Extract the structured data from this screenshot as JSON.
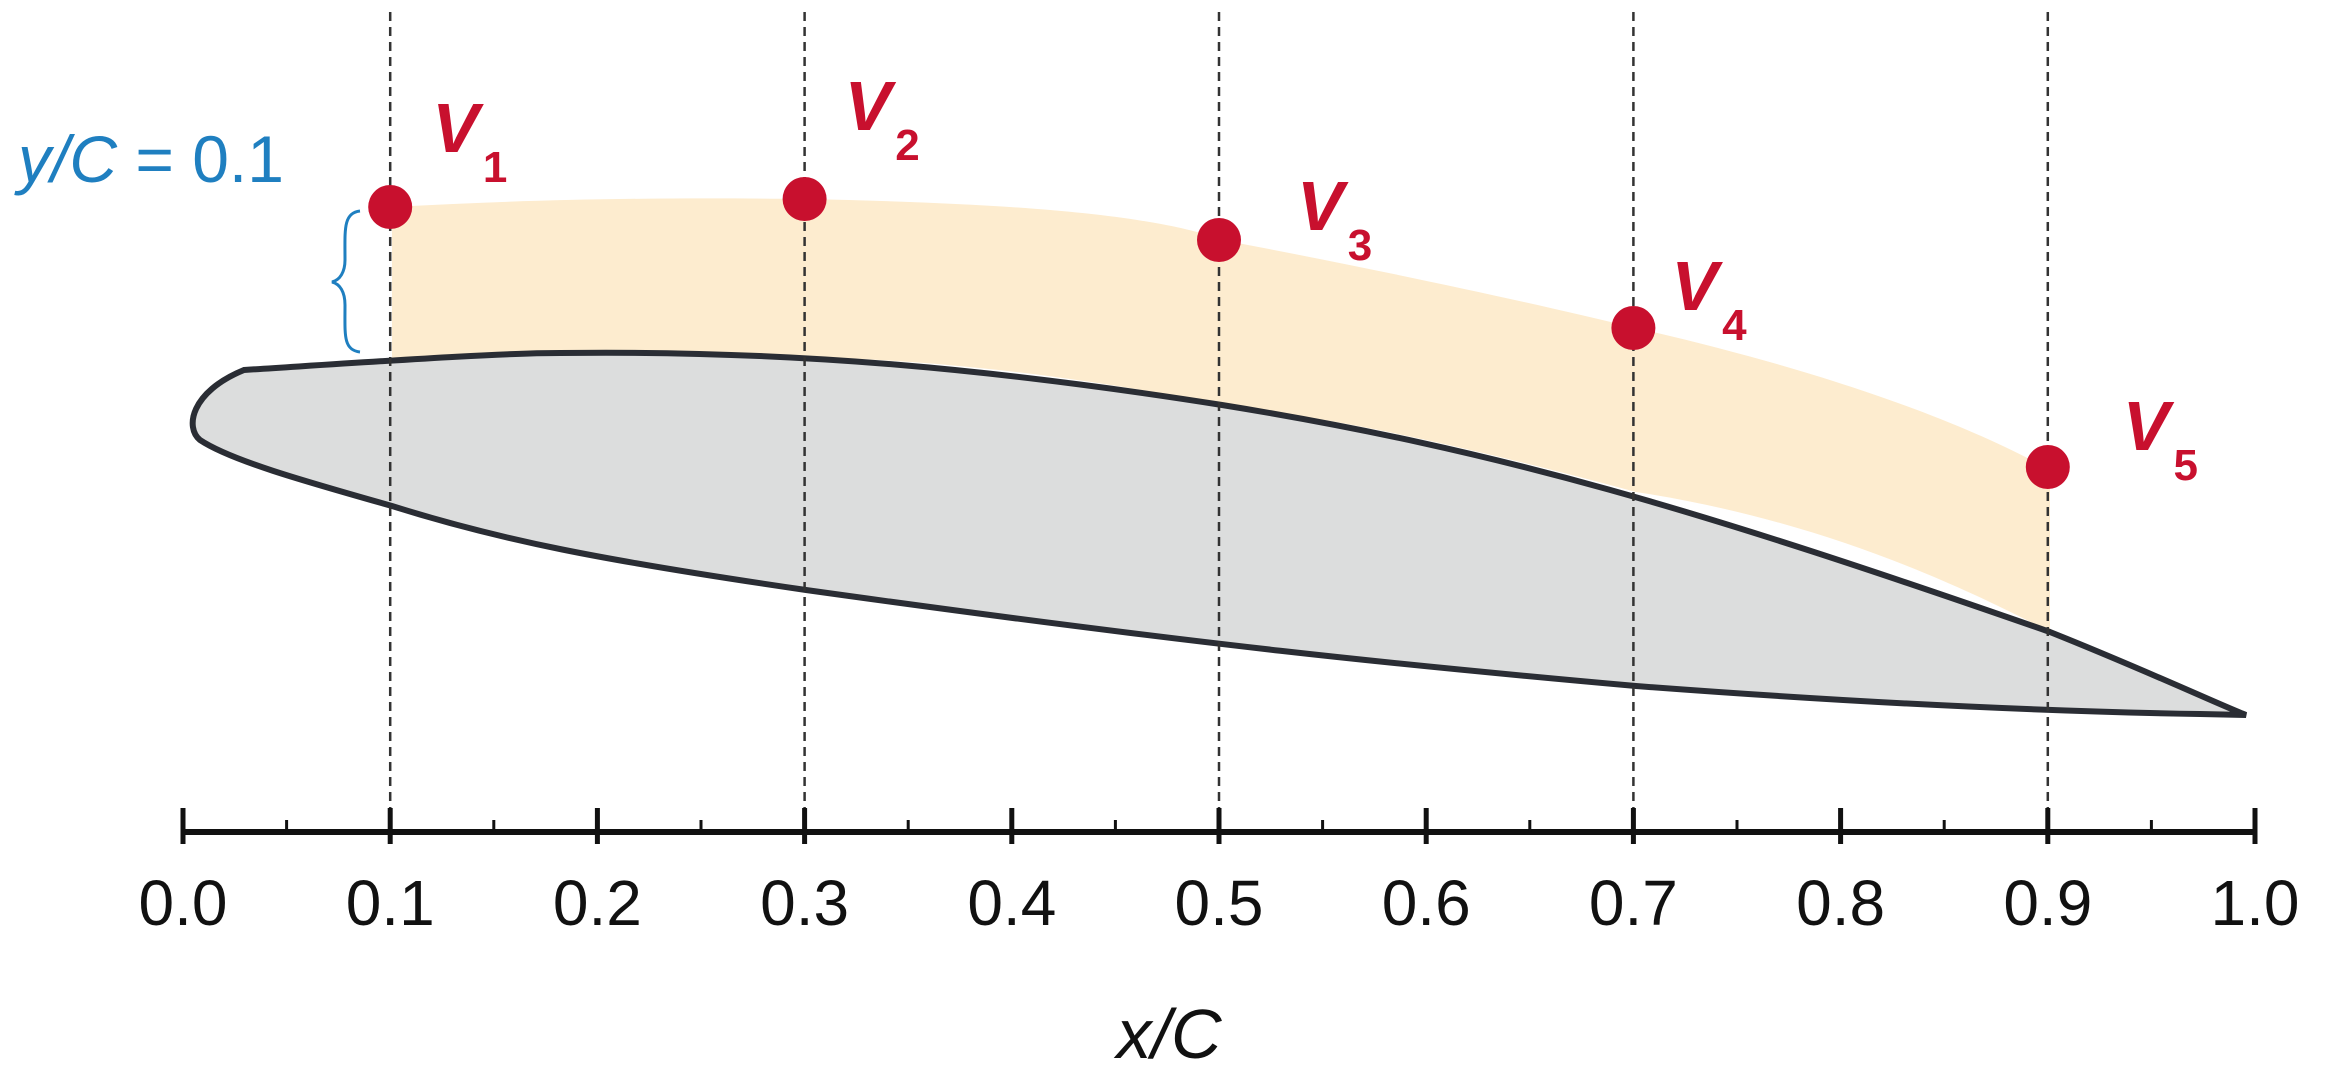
{
  "x_axis": {
    "title": "x/C",
    "min": 0.0,
    "max": 1.0,
    "major_tick_labels": [
      "0.0",
      "0.1",
      "0.2",
      "0.3",
      "0.4",
      "0.5",
      "0.6",
      "0.7",
      "0.8",
      "0.9",
      "1.0"
    ],
    "minor_tick_step": 0.05
  },
  "offset_line": {
    "label_italic": "y/C",
    "label_rest": " = 0.1",
    "y_over_c": 0.1
  },
  "colors": {
    "airfoil_fill": "#dcdddd",
    "airfoil_stroke": "#2a2d34",
    "band_fill": "#fdeccf",
    "point": "#c8102e",
    "offset_label": "#1f7fc0",
    "guide_line": "#333333",
    "axis": "#111111"
  },
  "points": [
    {
      "name": "V",
      "sub": "1",
      "x_over_c": 0.1
    },
    {
      "name": "V",
      "sub": "2",
      "x_over_c": 0.3
    },
    {
      "name": "V",
      "sub": "3",
      "x_over_c": 0.5
    },
    {
      "name": "V",
      "sub": "4",
      "x_over_c": 0.7
    },
    {
      "name": "V",
      "sub": "5",
      "x_over_c": 0.9
    }
  ]
}
